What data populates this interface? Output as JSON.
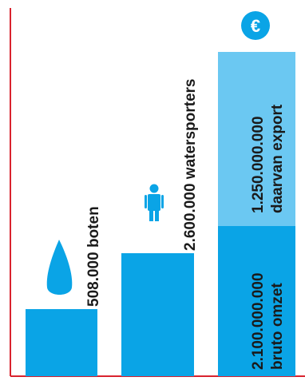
{
  "colors": {
    "axis": "#d9232e",
    "bar": "#0aa4e6",
    "bar_light": "#6bc8f2",
    "icon_white": "#ffffff",
    "text": "#1a1a1a"
  },
  "icons": {
    "sail": "sail-icon",
    "person": "person-icon",
    "currency": "euro-icon"
  },
  "chart_data": {
    "type": "bar",
    "grid": false,
    "bars": [
      {
        "id": "boats",
        "value": 508000,
        "label": "508.000 boten"
      },
      {
        "id": "watersports",
        "value": 2600000,
        "label": "2.600.000 watersporters"
      },
      {
        "id": "revenue",
        "value": 2100000000,
        "label": "2.100.000.000",
        "label2": "bruto omzet",
        "stack_value": 1250000000,
        "stack_label": "1.250.000.000",
        "stack_label2": "daarvan export"
      }
    ],
    "currency_symbol": "€"
  }
}
